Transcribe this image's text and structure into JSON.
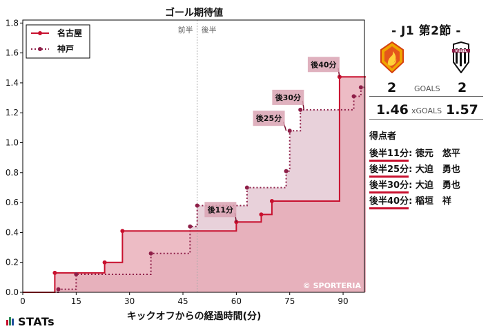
{
  "chart_data": {
    "type": "line",
    "title": "ゴール期待値",
    "xlabel": "キックオフからの経過時間(分)",
    "ylabel": "",
    "xlim": [
      0,
      96
    ],
    "ylim": [
      0,
      1.82
    ],
    "xticks": [
      0,
      15,
      30,
      45,
      60,
      75,
      90
    ],
    "yticks": [
      0.0,
      0.2,
      0.4,
      0.6,
      0.8,
      1.0,
      1.2,
      1.4,
      1.6,
      1.8
    ],
    "half_labels": [
      "前半",
      "後半"
    ],
    "watermark": "© SPORTERIA",
    "legend_position": "top-left",
    "series": [
      {
        "name": "名古屋",
        "style": "solid",
        "color": "#c8102e",
        "x": [
          0,
          9,
          23,
          28,
          60,
          67,
          70,
          89,
          100,
          105
        ],
        "y": [
          0,
          0.13,
          0.2,
          0.41,
          0.47,
          0.52,
          0.61,
          1.44,
          1.46,
          1.46
        ]
      },
      {
        "name": "神戸",
        "style": "dotted",
        "color": "#8e1f48",
        "x": [
          0,
          10,
          15,
          36,
          47,
          49,
          63,
          74,
          75,
          78,
          93,
          95,
          102,
          105
        ],
        "y": [
          0,
          0.02,
          0.12,
          0.26,
          0.44,
          0.58,
          0.7,
          0.81,
          1.08,
          1.22,
          1.31,
          1.37,
          1.57,
          1.57
        ]
      }
    ],
    "annotations": [
      {
        "label": "後11分",
        "x": 60,
        "y": 0.47
      },
      {
        "label": "後25分",
        "x": 74,
        "y": 1.08
      },
      {
        "label": "後30分",
        "x": 79,
        "y": 1.22
      },
      {
        "label": "後40分",
        "x": 89,
        "y": 1.44
      }
    ]
  },
  "match": {
    "title": "- J1 第2節 -",
    "home_goals": "2",
    "away_goals": "2",
    "goals_label": "GOALS",
    "home_xg": "1.46",
    "away_xg": "1.57",
    "xg_label": "xGOALS",
    "home_logo": "nagoya-grampus-crest",
    "away_logo": "vissel-kobe-crest",
    "away_logo_text": "VISSEL"
  },
  "scorers": {
    "title": "得点者",
    "items": [
      {
        "time": "後半11分",
        "name": ": 徳元　悠平"
      },
      {
        "time": "後半25分",
        "name": ": 大迫　勇也"
      },
      {
        "time": "後半30分",
        "name": ": 大迫　勇也"
      },
      {
        "time": "後半40分",
        "name": ": 稲垣　祥"
      }
    ]
  },
  "brand": "STATs",
  "colors": {
    "home": "#c8102e",
    "away": "#8e1f48",
    "home_fill": "#e7a5b2",
    "away_fill": "#e6ccd6"
  }
}
